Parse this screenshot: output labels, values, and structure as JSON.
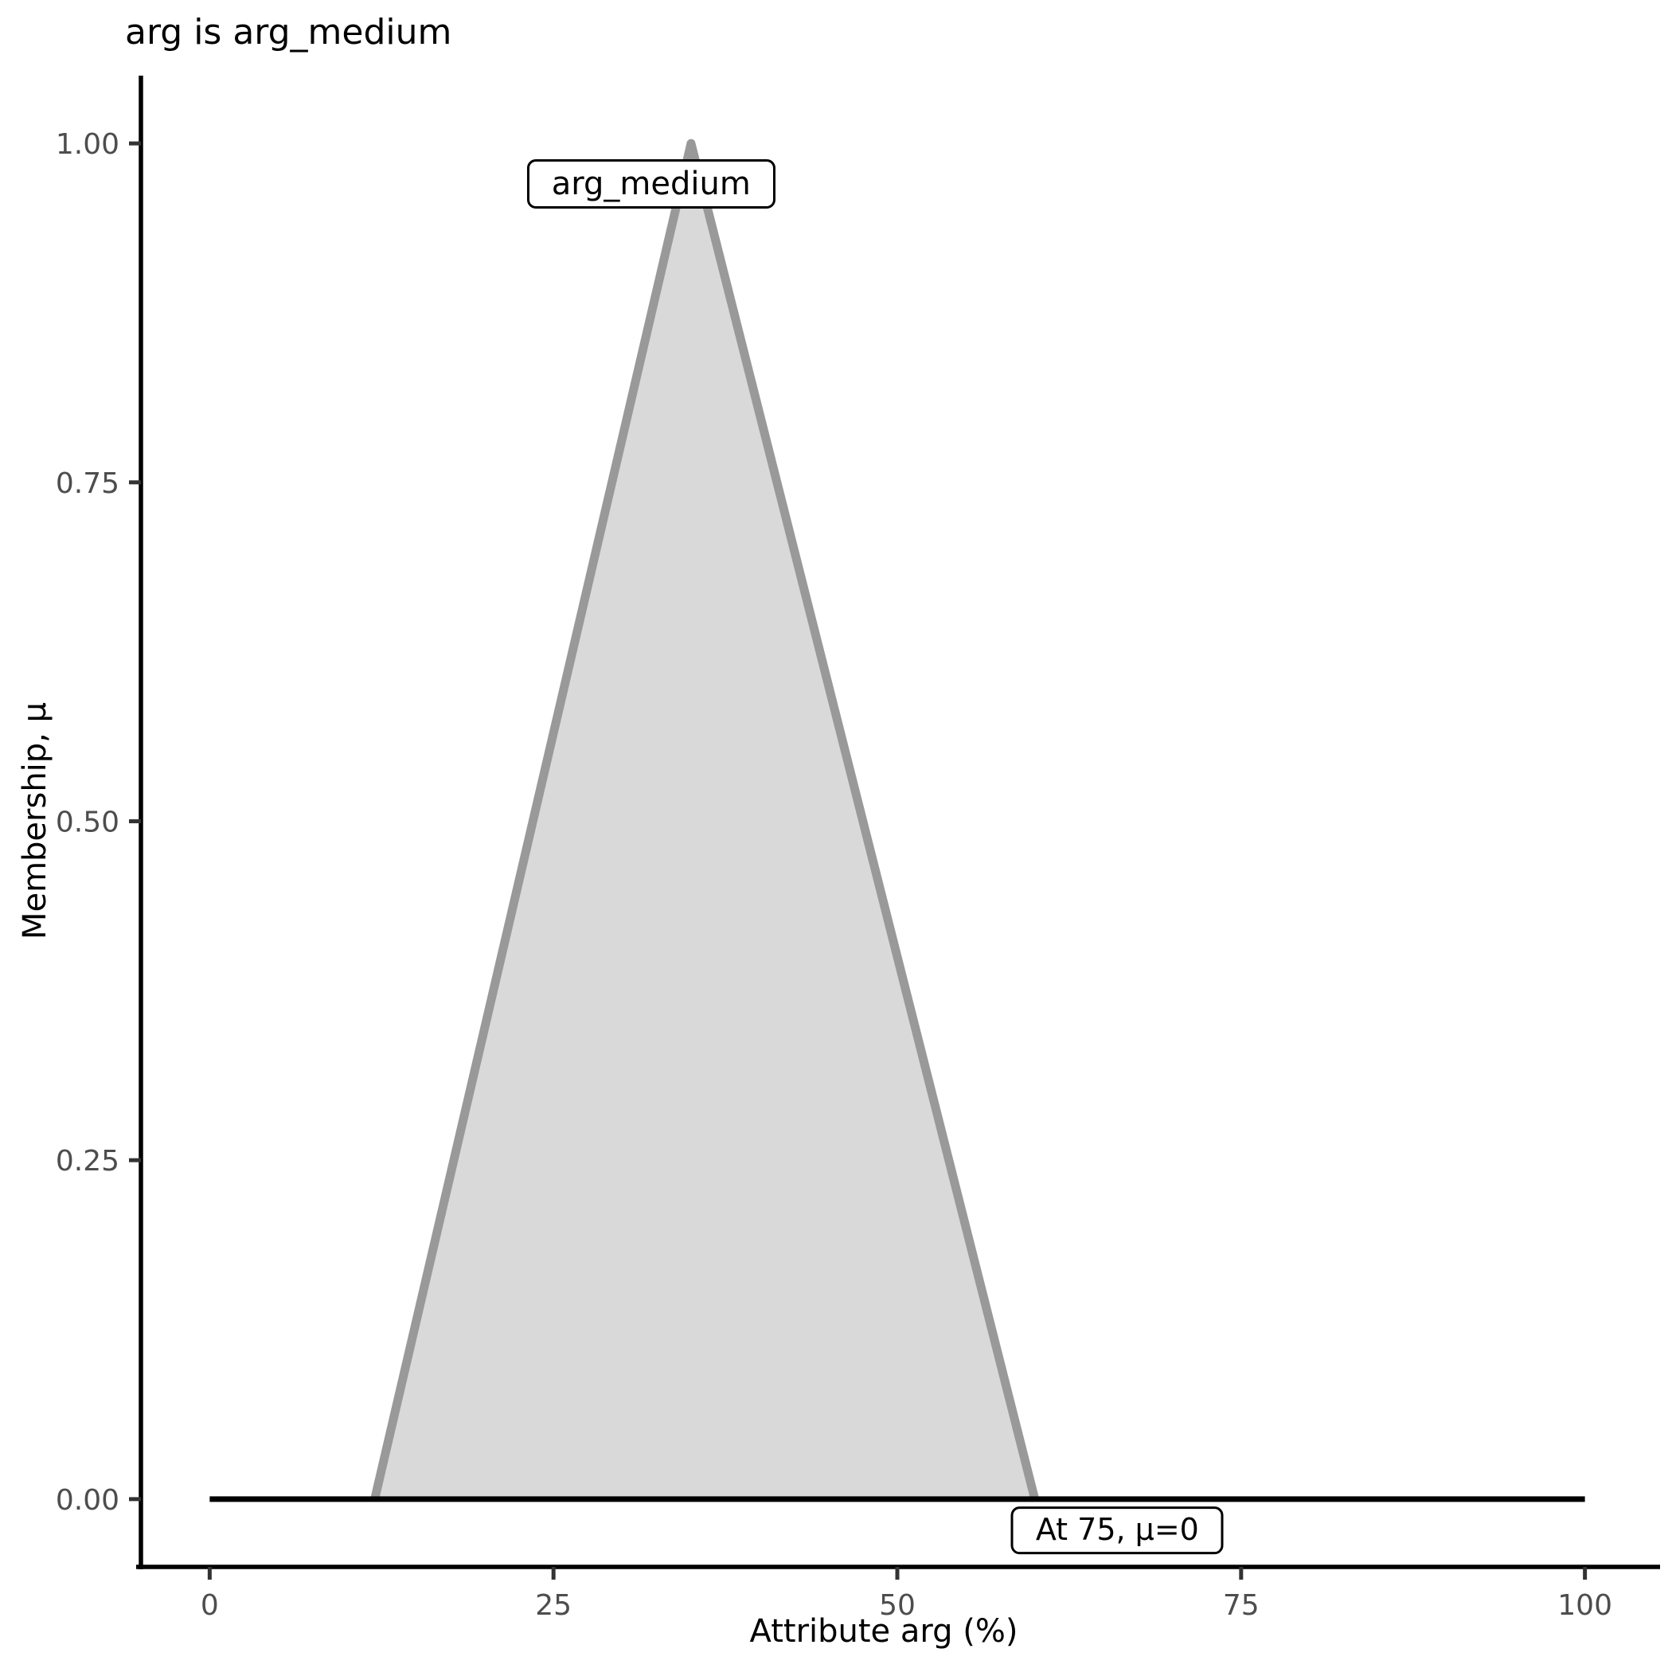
{
  "chart_data": {
    "type": "area",
    "title": "arg is arg_medium",
    "xlabel": "Attribute arg (%)",
    "ylabel": "Membership, μ",
    "xlim": [
      -5,
      105
    ],
    "ylim": [
      -0.05,
      1.05
    ],
    "grid": false,
    "legend": false,
    "x_ticks": [
      {
        "label": "0",
        "value": 0
      },
      {
        "label": "25",
        "value": 25
      },
      {
        "label": "50",
        "value": 50
      },
      {
        "label": "75",
        "value": 75
      },
      {
        "label": "100",
        "value": 100
      }
    ],
    "y_ticks": [
      {
        "label": "0.00",
        "value": 0.0
      },
      {
        "label": "0.25",
        "value": 0.25
      },
      {
        "label": "0.50",
        "value": 0.5
      },
      {
        "label": "0.75",
        "value": 0.75
      },
      {
        "label": "1.00",
        "value": 1.0
      }
    ],
    "series": [
      {
        "name": "arg_medium",
        "kind": "triangular-membership-function",
        "points": [
          [
            12,
            0
          ],
          [
            35,
            1
          ],
          [
            60,
            0
          ]
        ],
        "fill": "#d9d9d9",
        "stroke": "#999999"
      }
    ],
    "baseline": {
      "name": "zero-membership-line",
      "points": [
        [
          0,
          0
        ],
        [
          100,
          0
        ]
      ],
      "color": "#000000"
    },
    "annotations": [
      {
        "id": "arg-medium",
        "text": "arg_medium",
        "x": 32.1,
        "y": 0.97,
        "size": "normal"
      },
      {
        "id": "at-75",
        "text": "At 75, μ=0",
        "x": 66.0,
        "y": -0.023,
        "size": "small"
      }
    ],
    "colors": {
      "axis_line": "#000000",
      "tick_mark": "#333333",
      "tick_label": "#4d4d4d",
      "annotation_border": "#000000",
      "annotation_bg": "#ffffff",
      "title_text": "#000000"
    }
  }
}
